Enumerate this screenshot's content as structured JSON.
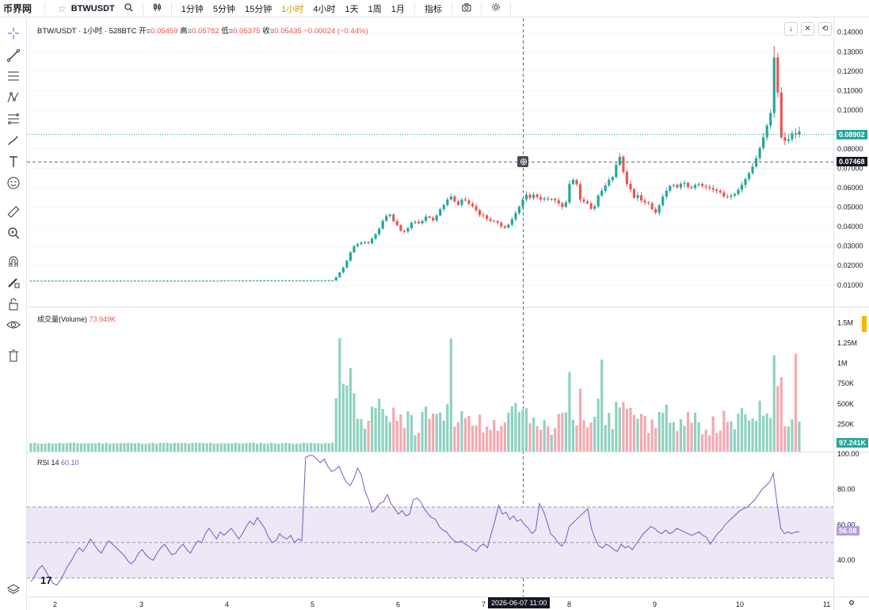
{
  "toolbar": {
    "logo": "币界网",
    "symbol": "BTWUSDT",
    "intervals": [
      "1分钟",
      "5分钟",
      "15分钟",
      "1小时",
      "4小时",
      "1天",
      "1周",
      "1月"
    ],
    "active_interval": "1小时",
    "indicators_label": "指标"
  },
  "legend": {
    "title": "BTW/USDT · 1小时 · 528BTC",
    "open_label": "开=",
    "open": "0.05459",
    "high_label": "高=",
    "high": "0.05782",
    "low_label": "低=",
    "low": "0.05375",
    "close_label": "收=",
    "close": "0.05435",
    "change": "−0.00024 (−0.44%)"
  },
  "volume_legend": {
    "label": "成交量(Volume)",
    "value": "73.949K"
  },
  "rsi_legend": {
    "label": "RSI 14",
    "value": "60.10"
  },
  "price_axis_ticks": [
    "0.14000",
    "0.13000",
    "0.12000",
    "0.11000",
    "0.10000",
    "0.08000",
    "0.07000",
    "0.06000",
    "0.05000",
    "0.04000",
    "0.03000",
    "0.02000",
    "0.01000"
  ],
  "volume_axis_ticks": [
    "1.5M",
    "1.25M",
    "1M",
    "750K",
    "500K",
    "250K"
  ],
  "rsi_axis_ticks": [
    "100.00",
    "80.00",
    "60.00",
    "40.00"
  ],
  "x_ticks": [
    "2",
    "3",
    "4",
    "5",
    "6",
    "7",
    "8",
    "9",
    "10",
    "11"
  ],
  "crosshair": {
    "time_label": "2026-06-07  11:00",
    "price_label": "0.07468"
  },
  "last_price_label": "0.08902",
  "volume_last_label": "97.241K",
  "rsi_last_label": "56.08",
  "colors": {
    "up": "#26a69a",
    "down": "#ef5350",
    "up_volume": "#8fd1c0",
    "down_volume": "#f4a8b0",
    "rsi_line": "#7e57c2",
    "rsi_band": "#ede7f6",
    "active": "#c99a06"
  },
  "chart_data": [
    {
      "type": "candlestick",
      "title": "BTW/USDT · 1小时 · 528BTC",
      "x_ticks": [
        "2",
        "3",
        "4",
        "5",
        "6",
        "7",
        "8",
        "9",
        "10",
        "11"
      ],
      "ylim": [
        0.0,
        0.142
      ],
      "closes": [
        0.0122,
        0.0122,
        0.0122,
        0.0122,
        0.0122,
        0.0122,
        0.0122,
        0.0122,
        0.0122,
        0.0122,
        0.0122,
        0.0122,
        0.0122,
        0.0122,
        0.0122,
        0.0122,
        0.0122,
        0.0122,
        0.0122,
        0.0122,
        0.0122,
        0.0122,
        0.0122,
        0.0122,
        0.0122,
        0.0122,
        0.0122,
        0.0122,
        0.0122,
        0.0122,
        0.0122,
        0.0122,
        0.0122,
        0.0122,
        0.0122,
        0.0122,
        0.0122,
        0.0122,
        0.0122,
        0.0122,
        0.0122,
        0.0122,
        0.0122,
        0.0122,
        0.0122,
        0.0122,
        0.0122,
        0.0122,
        0.0122,
        0.0122,
        0.0122,
        0.0122,
        0.0122,
        0.0123,
        0.0123,
        0.0123,
        0.0123,
        0.0123,
        0.0123,
        0.0123,
        0.0123,
        0.0123,
        0.0123,
        0.0123,
        0.0123,
        0.0123,
        0.0123,
        0.0123,
        0.0123,
        0.0123,
        0.0123,
        0.0123,
        0.0123,
        0.0123,
        0.0123,
        0.0123,
        0.0123,
        0.0123,
        0.0123,
        0.0123,
        0.0123,
        0.0123,
        0.0123,
        0.0123,
        0.0123,
        0.014,
        0.0165,
        0.019,
        0.0225,
        0.0268,
        0.03,
        0.031,
        0.0318,
        0.032,
        0.0315,
        0.0338,
        0.0362,
        0.039,
        0.043,
        0.0455,
        0.0462,
        0.0428,
        0.0408,
        0.038,
        0.0375,
        0.0393,
        0.042,
        0.0425,
        0.0418,
        0.043,
        0.0452,
        0.0446,
        0.0432,
        0.0458,
        0.049,
        0.0512,
        0.054,
        0.0555,
        0.053,
        0.0512,
        0.054,
        0.0535,
        0.0518,
        0.0505,
        0.0485,
        0.046,
        0.0458,
        0.044,
        0.043,
        0.0428,
        0.042,
        0.0402,
        0.0395,
        0.041,
        0.0438,
        0.047,
        0.0502,
        0.054,
        0.0565,
        0.0548,
        0.0565,
        0.0552,
        0.054,
        0.0545,
        0.054,
        0.0542,
        0.0535,
        0.052,
        0.0502,
        0.0525,
        0.062,
        0.064,
        0.0618,
        0.054,
        0.053,
        0.052,
        0.0492,
        0.0505,
        0.056,
        0.0585,
        0.0612,
        0.064,
        0.0655,
        0.0718,
        0.076,
        0.0682,
        0.062,
        0.0592,
        0.0548,
        0.0562,
        0.0535,
        0.0525,
        0.052,
        0.049,
        0.0472,
        0.051,
        0.0555,
        0.0585,
        0.061,
        0.0615,
        0.0602,
        0.062,
        0.0625,
        0.0605,
        0.06,
        0.0615,
        0.062,
        0.061,
        0.0605,
        0.0598,
        0.059,
        0.0584,
        0.0576,
        0.0555,
        0.0554,
        0.056,
        0.0568,
        0.059,
        0.0615,
        0.0645,
        0.0675,
        0.071,
        0.0752,
        0.0805,
        0.086,
        0.092,
        0.0985,
        0.127,
        0.109,
        0.086,
        0.0842,
        0.085,
        0.088,
        0.0874,
        0.089
      ]
    },
    {
      "type": "bar",
      "title": "成交量(Volume)",
      "ylim": [
        0,
        1600000
      ]
    },
    {
      "type": "line",
      "title": "RSI 14",
      "ylim": [
        20,
        100
      ],
      "values": [
        28,
        31,
        35,
        37,
        34,
        30,
        27,
        26,
        29,
        33,
        37,
        40,
        44,
        47,
        45,
        48,
        52,
        49,
        46,
        44,
        48,
        51,
        49,
        47,
        45,
        43,
        40,
        38,
        40,
        44,
        46,
        43,
        41,
        40,
        44,
        47,
        49,
        46,
        43,
        44,
        47,
        49,
        46,
        44,
        48,
        51,
        50,
        55,
        58,
        55,
        52,
        56,
        54,
        56,
        58,
        55,
        52,
        55,
        59,
        62,
        60,
        64,
        61,
        58,
        53,
        50,
        51,
        55,
        53,
        52,
        54,
        50,
        52,
        51,
        98,
        99,
        99,
        97,
        95,
        97,
        93,
        90,
        91,
        93,
        88,
        84,
        82,
        86,
        92,
        88,
        79,
        74,
        67,
        69,
        72,
        73,
        77,
        72,
        69,
        66,
        68,
        65,
        66,
        74,
        75,
        73,
        69,
        66,
        64,
        63,
        59,
        57,
        56,
        53,
        51,
        50,
        51,
        49,
        48,
        46,
        45,
        48,
        49,
        47,
        55,
        62,
        71,
        66,
        67,
        63,
        65,
        62,
        63,
        60,
        58,
        55,
        57,
        72,
        68,
        62,
        55,
        53,
        50,
        48,
        51,
        59,
        61,
        63,
        65,
        67,
        69,
        58,
        52,
        48,
        47,
        49,
        48,
        46,
        45,
        49,
        47,
        48,
        46,
        49,
        52,
        55,
        57,
        59,
        58,
        56,
        55,
        57,
        55,
        56,
        58,
        57,
        56,
        55,
        54,
        55,
        56,
        54,
        53,
        49,
        52,
        55,
        57,
        60,
        62,
        64,
        66,
        68,
        69,
        70,
        72,
        74,
        77,
        80,
        82,
        84,
        89,
        72,
        58,
        55,
        56,
        55,
        56,
        56
      ]
    }
  ]
}
